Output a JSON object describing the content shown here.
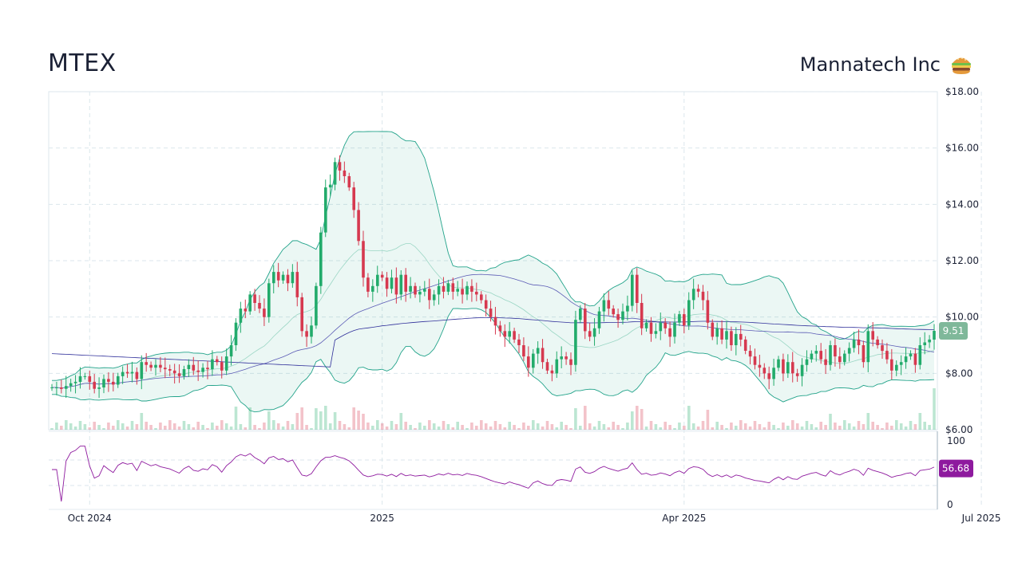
{
  "header": {
    "ticker": "MTEX",
    "company": "Mannatech Inc",
    "logo_icon": "burger-icon"
  },
  "chart_data": {
    "type": "candlestick",
    "price_axis": {
      "ylim": [
        6,
        18
      ],
      "ticks": [
        "$6.00",
        "$8.00",
        "$10.00",
        "$12.00",
        "$14.00",
        "$16.00",
        "$18.00"
      ],
      "tick_values": [
        6,
        8,
        10,
        12,
        14,
        16,
        18
      ]
    },
    "rsi_axis": {
      "ylim": [
        0,
        100
      ],
      "ticks": [
        "0",
        "100"
      ],
      "tick_values": [
        0,
        100
      ]
    },
    "x_axis": {
      "labels": [
        "Oct 2024",
        "2025",
        "Apr 2025",
        "Jul 2025"
      ],
      "label_index": [
        8,
        70,
        134,
        197
      ]
    },
    "last_price_label": "9.51",
    "last_rsi_label": "56.68",
    "grid": true,
    "colors": {
      "up": "#22ab6b",
      "down": "#d6394f",
      "band": "#22a38a",
      "sma_short": "#9ad6c4",
      "sma_long": "#2f2f9a",
      "rsi": "#8e1a9e",
      "price_badge": "#7fb89a",
      "rsi_badge": "#8e1a9e"
    },
    "closes": [
      7.5,
      7.5,
      7.45,
      7.55,
      7.65,
      7.7,
      7.9,
      7.9,
      7.7,
      7.45,
      7.5,
      7.8,
      7.7,
      7.6,
      7.9,
      8.05,
      8.0,
      8.05,
      7.8,
      8.4,
      8.3,
      8.2,
      8.3,
      8.2,
      8.15,
      8.1,
      8.0,
      7.9,
      8.15,
      8.3,
      8.1,
      8.05,
      8.2,
      8.15,
      8.5,
      8.4,
      8.1,
      8.6,
      9.0,
      9.8,
      10.3,
      10.2,
      10.8,
      10.5,
      10.3,
      10.0,
      11.2,
      11.6,
      11.3,
      11.5,
      11.2,
      11.6,
      10.7,
      9.5,
      9.3,
      9.7,
      11.1,
      13.0,
      14.6,
      14.7,
      15.5,
      15.2,
      15.0,
      14.6,
      13.8,
      12.7,
      11.4,
      10.9,
      11.1,
      11.5,
      11.4,
      11.0,
      11.4,
      10.8,
      11.5,
      10.9,
      11.1,
      10.8,
      10.9,
      11.0,
      10.6,
      10.8,
      11.1,
      10.9,
      11.2,
      10.9,
      11.0,
      10.8,
      11.1,
      10.9,
      10.8,
      10.6,
      10.3,
      10.0,
      9.7,
      9.5,
      9.3,
      9.5,
      9.2,
      9.0,
      8.6,
      8.2,
      8.7,
      8.9,
      8.4,
      8.1,
      8.0,
      8.5,
      8.6,
      8.5,
      8.3,
      9.9,
      10.3,
      9.5,
      9.3,
      9.6,
      10.2,
      10.6,
      10.3,
      10.1,
      9.9,
      10.2,
      10.4,
      11.5,
      10.5,
      9.6,
      9.8,
      9.4,
      9.5,
      9.8,
      9.6,
      9.3,
      9.8,
      10.1,
      9.7,
      10.6,
      11.0,
      10.9,
      10.6,
      9.8,
      9.3,
      9.6,
      9.2,
      9.5,
      9.0,
      9.4,
      9.2,
      8.8,
      8.6,
      8.3,
      8.2,
      8.0,
      7.8,
      8.2,
      8.5,
      8.0,
      8.4,
      8.0,
      7.9,
      8.3,
      8.5,
      8.7,
      8.8,
      8.5,
      8.3,
      9.0,
      8.6,
      8.4,
      8.7,
      8.9,
      9.2,
      9.0,
      8.4,
      9.5,
      9.2,
      9.0,
      8.8,
      8.5,
      8.1,
      8.3,
      8.4,
      8.6,
      8.7,
      8.3,
      9.0,
      9.1,
      9.2,
      9.51
    ]
  }
}
